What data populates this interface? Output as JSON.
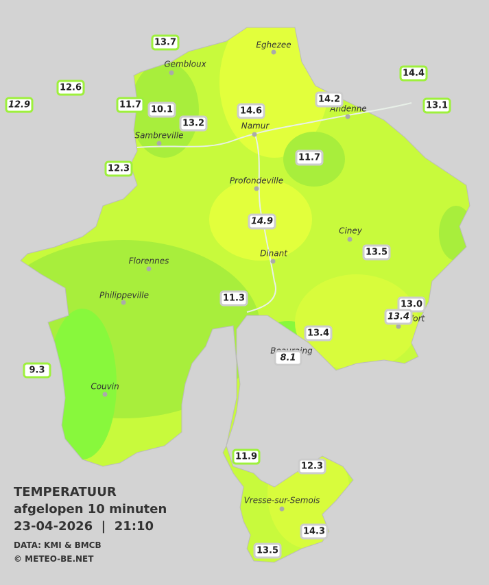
{
  "legend": {
    "title": "TEMPERATUUR",
    "subtitle": "afgelopen 10 minuten",
    "datetime": "23-04-2026  |  21:10",
    "source": "DATA: KMI & BMCB",
    "credit": "© METEO-BE.NET"
  },
  "towns": [
    "Eghezee",
    "Gembloux",
    "Andenne",
    "Namur",
    "Sambreville",
    "Profondeville",
    "Ciney",
    "Dinant",
    "Florennes",
    "Philippeville",
    "Rochefort",
    "Beauraing",
    "Couvin",
    "Vresse-sur-Semois"
  ],
  "stations": [
    "13.7",
    "12.6",
    "12.9",
    "11.7",
    "10.1",
    "13.2",
    "14.6",
    "14.2",
    "14.4",
    "13.1",
    "12.3",
    "11.7",
    "14.9",
    "13.5",
    "11.3",
    "13.0",
    "13.4",
    "13.4",
    "8.1",
    "9.3",
    "11.9",
    "12.3",
    "14.3",
    "13.5"
  ]
}
